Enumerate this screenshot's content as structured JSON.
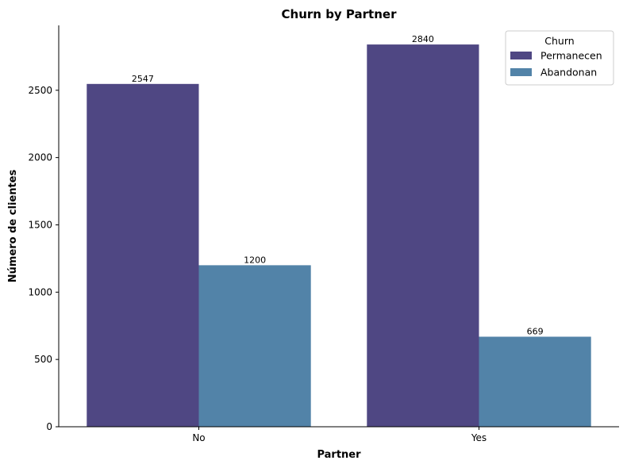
{
  "chart_data": {
    "type": "bar",
    "title": "Churn by Partner",
    "xlabel": "Partner",
    "ylabel": "Número de clientes",
    "categories": [
      "No",
      "Yes"
    ],
    "series": [
      {
        "name": "Permanecen",
        "values": [
          2547,
          2840
        ],
        "color": "#4f4783"
      },
      {
        "name": "Abandonan",
        "values": [
          1200,
          669
        ],
        "color": "#5283a8"
      }
    ],
    "ylim": [
      0,
      2982
    ],
    "yticks": [
      0,
      500,
      1000,
      1500,
      2000,
      2500
    ],
    "legend": {
      "title": "Churn",
      "placement": "top-right"
    },
    "grid": false
  }
}
